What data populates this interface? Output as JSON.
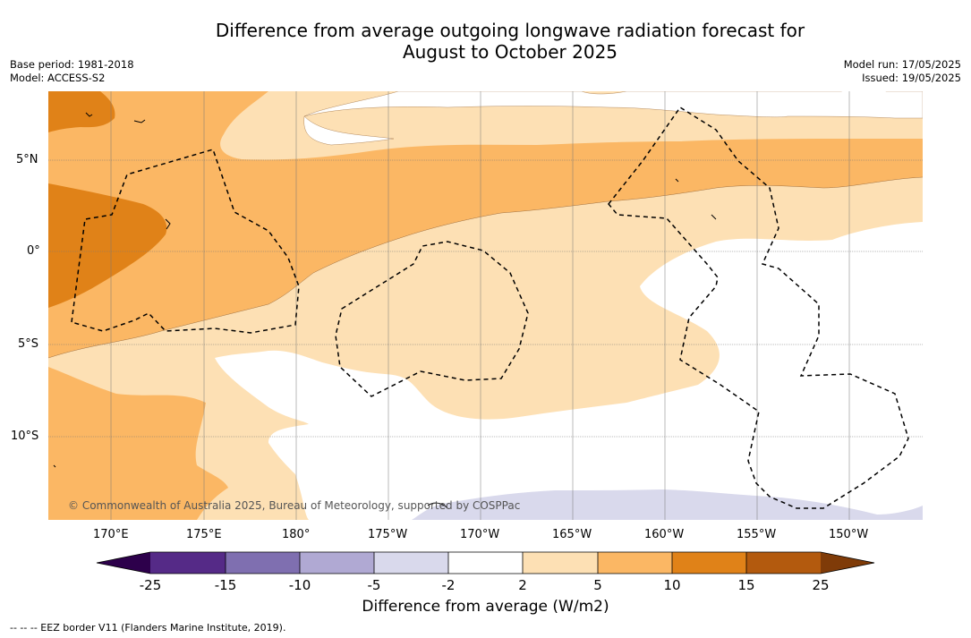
{
  "title_line1": "Difference from average outgoing longwave radiation forecast for",
  "title_line2": "August to October 2025",
  "base_period": "Base period: 1981-2018",
  "model": "Model: ACCESS-S2",
  "model_run": "Model run: 17/05/2025",
  "issued": "Issued: 19/05/2025",
  "lat_labels": [
    "5°N",
    "0°",
    "5°S",
    "10°S"
  ],
  "lon_labels": [
    "170°E",
    "175°E",
    "180°",
    "175°W",
    "170°W",
    "165°W",
    "160°W",
    "155°W",
    "150°W"
  ],
  "copyright": "© Commonwealth of Australia 2025, Bureau of Meteorology, supported by COSPPac",
  "colorbar": {
    "ticks": [
      "-25",
      "-15",
      "-10",
      "-5",
      "-2",
      "2",
      "5",
      "10",
      "15",
      "25"
    ],
    "colors": [
      "#552a87",
      "#7f6fb0",
      "#b0a9d3",
      "#d9d9ec",
      "#ffffff",
      "#fde0b4",
      "#fbb764",
      "#e08218",
      "#b35a0e"
    ],
    "under_color": "#2d004b",
    "over_color": "#7f3b08",
    "label": "Difference from average (W/m2)"
  },
  "footnote": "--  --  -- EEZ border V11 (Flanders Marine Institute, 2019)."
}
